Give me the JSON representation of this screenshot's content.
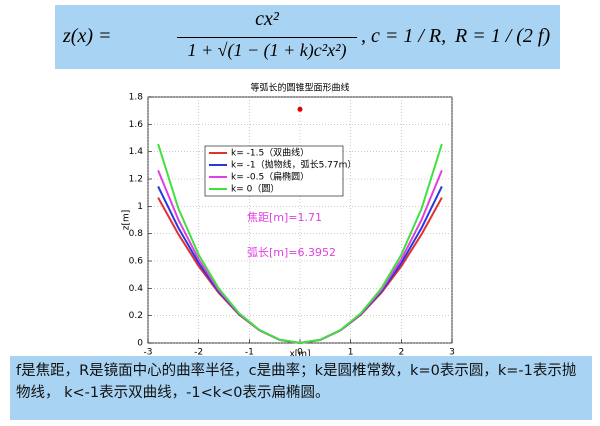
{
  "formula": {
    "lhs": "z(x) =",
    "numerator": "cx²",
    "denominator": "1 + √(1 − (1 + k)c²x²)",
    "tail": ", c = 1 / R,",
    "radius": "R = 1 / (2 f)"
  },
  "chart_data": {
    "type": "line",
    "title": "等弧长的圆锥型面形曲线",
    "xlabel": "x[m]",
    "ylabel": "z[m]",
    "x": [
      -2.8,
      -2.4,
      -2.0,
      -1.6,
      -1.2,
      -0.8,
      -0.4,
      0,
      0.4,
      0.8,
      1.2,
      1.6,
      2.0,
      2.4,
      2.8
    ],
    "series": [
      {
        "name": "k= -1.5（双曲线）",
        "color": "#e03030",
        "values": [
          1.064,
          0.796,
          0.562,
          0.365,
          0.207,
          0.093,
          0.023,
          0,
          0.023,
          0.093,
          0.207,
          0.365,
          0.562,
          0.796,
          1.064
        ]
      },
      {
        "name": "k= -1（抛物线，弧长5.77m）",
        "color": "#2838e0",
        "values": [
          1.146,
          0.842,
          0.585,
          0.374,
          0.211,
          0.094,
          0.023,
          0,
          0.023,
          0.094,
          0.211,
          0.374,
          0.585,
          0.842,
          1.146
        ]
      },
      {
        "name": "k= -0.5（扁椭圆）",
        "color": "#e040e0",
        "values": [
          1.263,
          0.902,
          0.612,
          0.385,
          0.214,
          0.094,
          0.023,
          0,
          0.023,
          0.094,
          0.214,
          0.385,
          0.612,
          0.902,
          1.263
        ]
      },
      {
        "name": "k= 0（圆）",
        "color": "#40e040",
        "values": [
          1.456,
          0.984,
          0.646,
          0.397,
          0.217,
          0.095,
          0.024,
          0,
          0.024,
          0.095,
          0.217,
          0.397,
          0.646,
          0.984,
          1.456
        ]
      }
    ],
    "marker": {
      "x": 0,
      "y": 1.71,
      "color": "#e00000"
    },
    "annotations": [
      "焦距[m]=1.71",
      "弧长[m]=6.3952"
    ],
    "annotation_color": "#e040e0",
    "xlim": [
      -3,
      3
    ],
    "xticks": [
      -3,
      -2,
      -1,
      0,
      1,
      2,
      3
    ],
    "ylim": [
      0,
      1.8
    ],
    "yticks": [
      0,
      0.2,
      0.4,
      0.6,
      0.8,
      1,
      1.2,
      1.4,
      1.6,
      1.8
    ],
    "grid": true,
    "legend": "upper-left"
  },
  "caption": "f是焦距，R是镜面中心的曲率半径，c是曲率；k是圆椎常数，k=0表示圆，k=-1表示抛物线， k<-1表示双曲线，-1<k<0表示扁椭圆。"
}
